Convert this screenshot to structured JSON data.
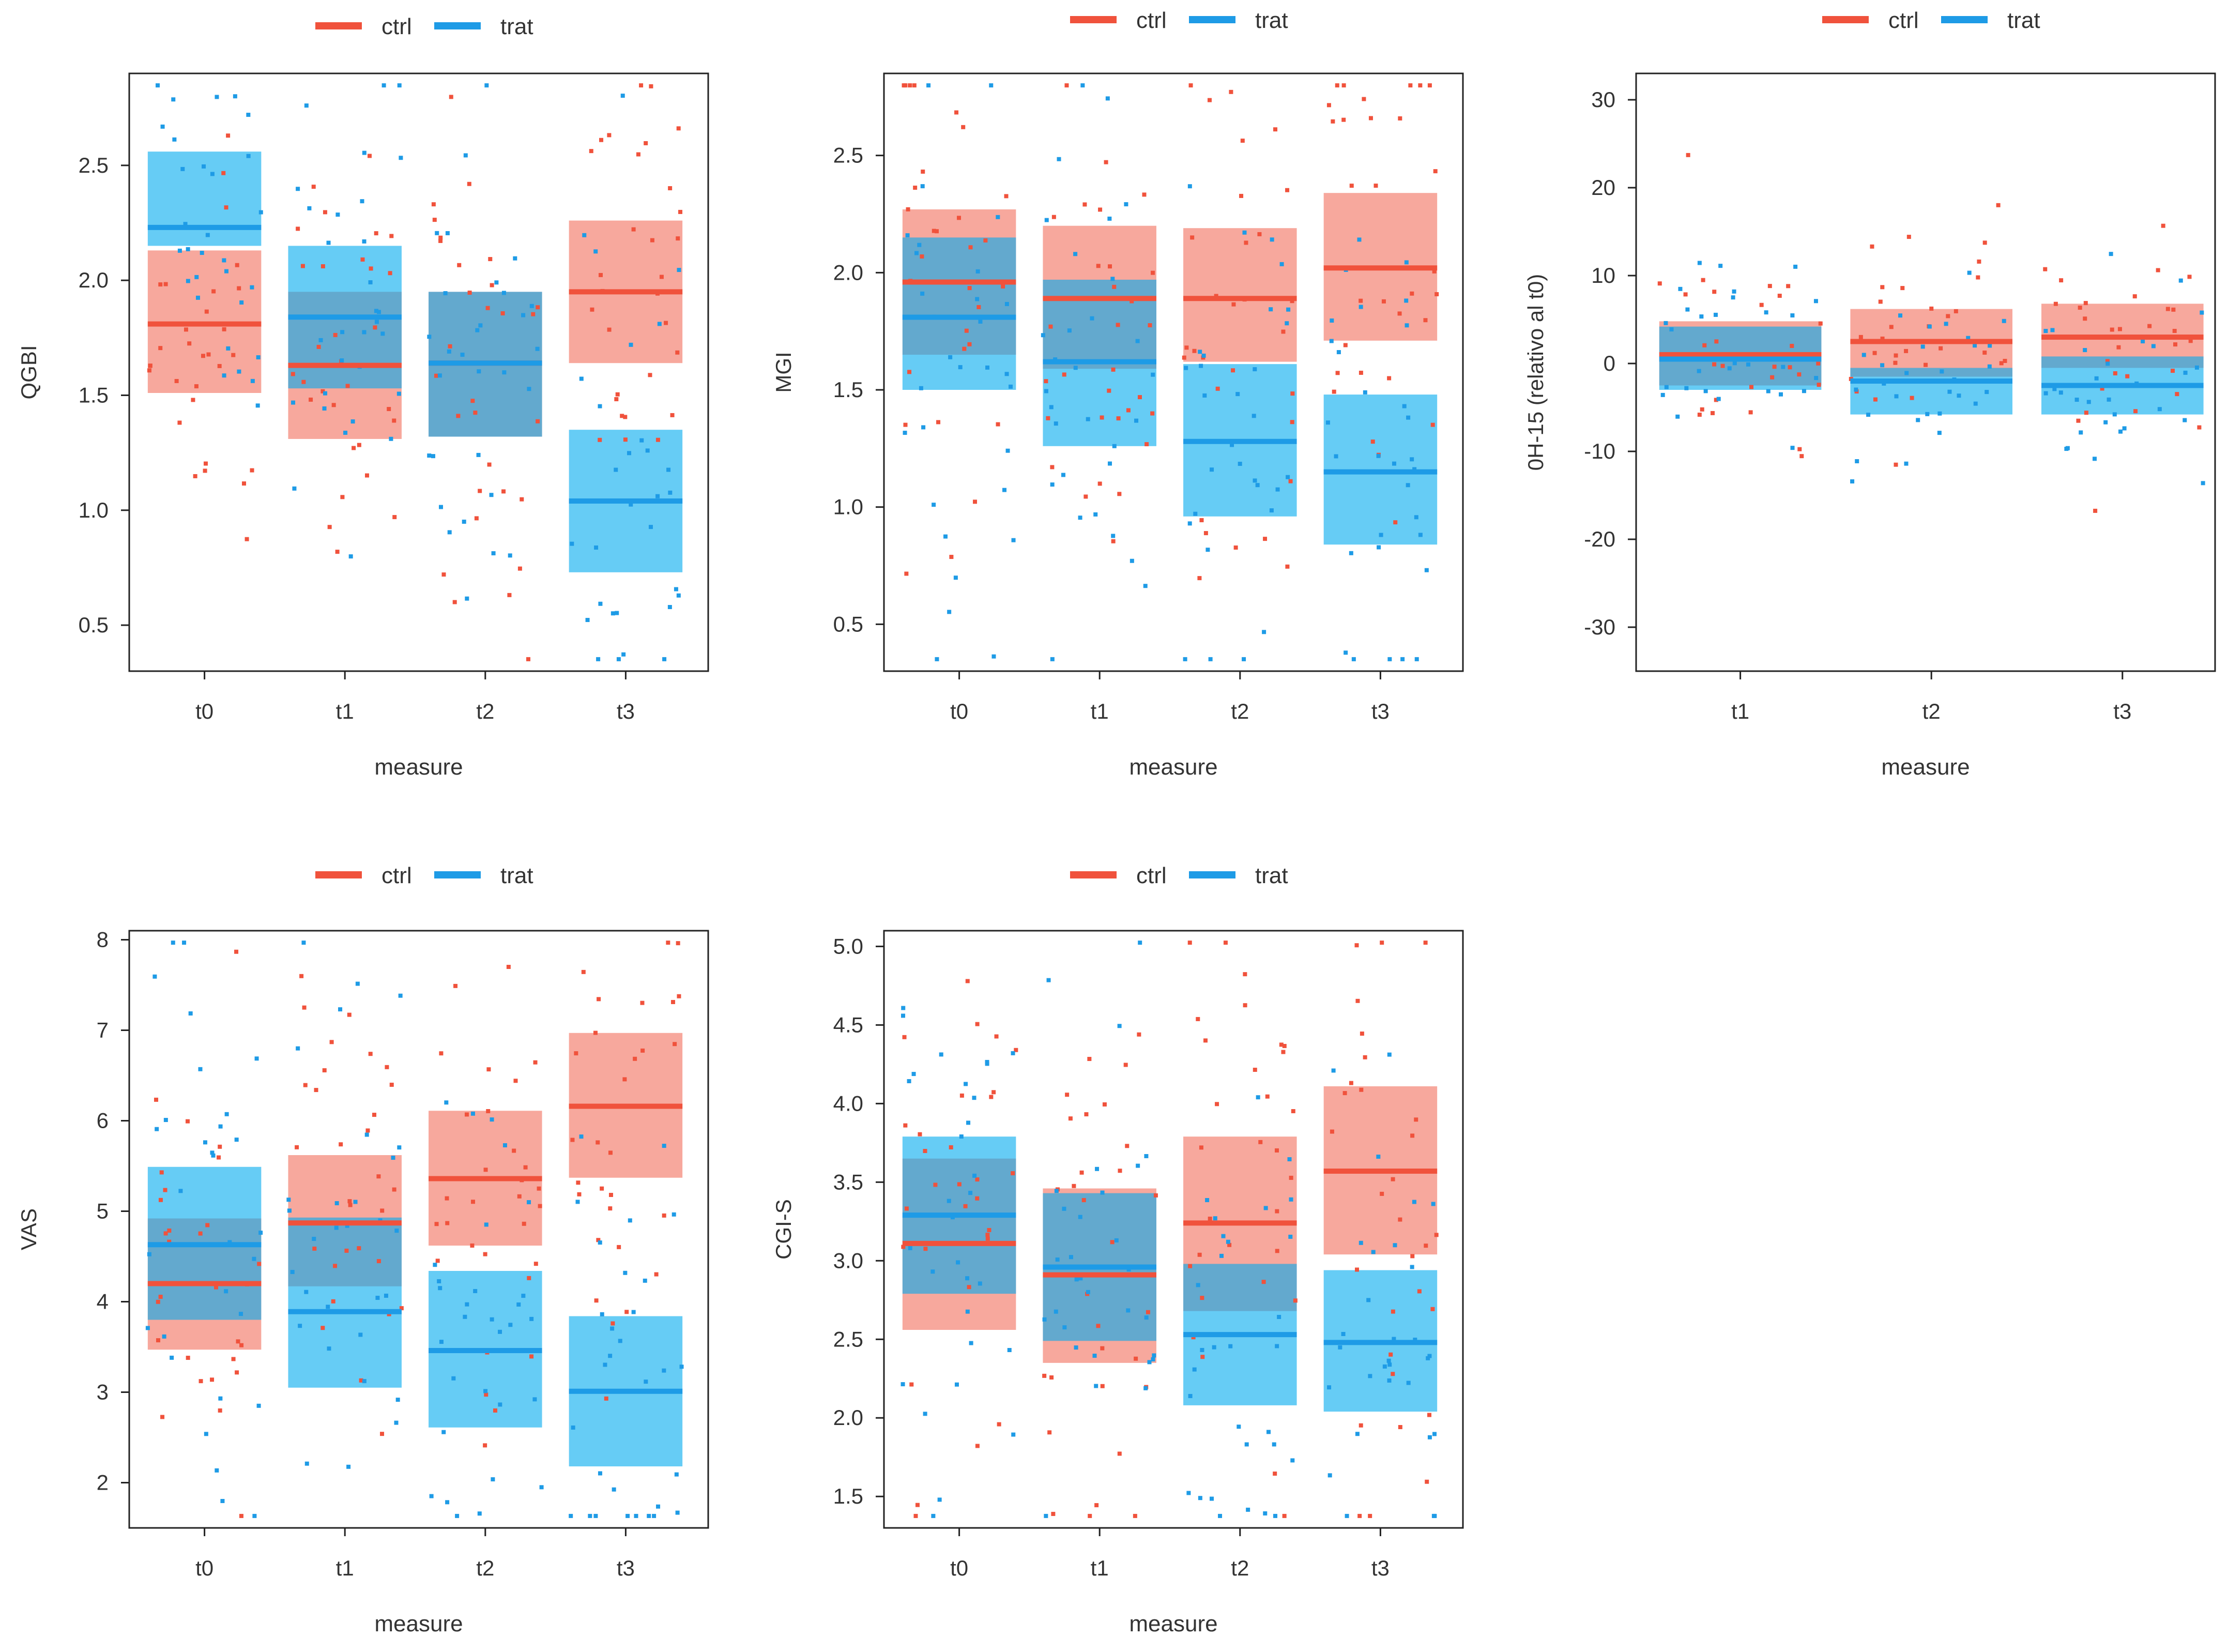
{
  "colors": {
    "ctrl": "#f0523c",
    "trat": "#1e9be6",
    "ctrl_fill": "#f0523c",
    "trat_fill": "#00aaee",
    "axis": "#222222"
  },
  "legend": {
    "ctrl": "ctrl",
    "trat": "trat"
  },
  "chart_data": [
    {
      "type": "scatter",
      "title": "",
      "xlabel": "measure",
      "ylabel": "QGBI",
      "categories": [
        "t0",
        "t1",
        "t2",
        "t3"
      ],
      "ylim": [
        0.3,
        2.9
      ],
      "yticks": [
        "0.5",
        "1.0",
        "1.5",
        "2.0",
        "2.5"
      ],
      "series": [
        {
          "name": "ctrl",
          "mean": [
            1.81,
            1.63,
            1.64,
            1.95
          ],
          "lower": [
            1.51,
            1.31,
            1.32,
            1.64
          ],
          "upper": [
            2.13,
            1.95,
            1.95,
            2.26
          ]
        },
        {
          "name": "trat",
          "mean": [
            2.23,
            1.84,
            1.64,
            1.04
          ],
          "lower": [
            2.15,
            1.53,
            1.32,
            0.73
          ],
          "upper": [
            2.56,
            2.15,
            1.95,
            1.35
          ]
        }
      ]
    },
    {
      "type": "scatter",
      "title": "",
      "xlabel": "measure",
      "ylabel": "MGI",
      "categories": [
        "t0",
        "t1",
        "t2",
        "t3"
      ],
      "ylim": [
        0.3,
        2.85
      ],
      "yticks": [
        "0.5",
        "1.0",
        "1.5",
        "2.0",
        "2.5"
      ],
      "series": [
        {
          "name": "ctrl",
          "mean": [
            1.96,
            1.89,
            1.89,
            2.02
          ],
          "lower": [
            1.65,
            1.59,
            1.62,
            1.71
          ],
          "upper": [
            2.27,
            2.2,
            2.19,
            2.34
          ]
        },
        {
          "name": "trat",
          "mean": [
            1.81,
            1.62,
            1.28,
            1.15
          ],
          "lower": [
            1.5,
            1.26,
            0.96,
            0.84
          ],
          "upper": [
            2.15,
            1.97,
            1.61,
            1.48
          ]
        }
      ]
    },
    {
      "type": "scatter",
      "title": "",
      "xlabel": "measure",
      "ylabel": "0H-15 (relativo al t0)",
      "categories": [
        "t1",
        "t2",
        "t3"
      ],
      "ylim": [
        -35,
        33
      ],
      "yticks": [
        "-30",
        "-20",
        "-10",
        "0",
        "10",
        "20",
        "30"
      ],
      "series": [
        {
          "name": "ctrl",
          "mean": [
            1.0,
            2.5,
            3.0
          ],
          "lower": [
            -2.5,
            -1.5,
            -0.5
          ],
          "upper": [
            4.8,
            6.2,
            6.8
          ]
        },
        {
          "name": "trat",
          "mean": [
            0.5,
            -2.0,
            -2.5
          ],
          "lower": [
            -3.0,
            -5.8,
            -5.8
          ],
          "upper": [
            4.2,
            -0.5,
            0.8
          ]
        }
      ]
    },
    {
      "type": "scatter",
      "title": "",
      "xlabel": "measure",
      "ylabel": "VAS",
      "categories": [
        "t0",
        "t1",
        "t2",
        "t3"
      ],
      "ylim": [
        1.5,
        8.1
      ],
      "yticks": [
        "2",
        "3",
        "4",
        "5",
        "6",
        "7",
        "8"
      ],
      "series": [
        {
          "name": "ctrl",
          "mean": [
            4.2,
            4.87,
            5.36,
            6.16
          ],
          "lower": [
            3.47,
            4.17,
            4.62,
            5.37
          ],
          "upper": [
            4.92,
            5.62,
            6.11,
            6.97
          ]
        },
        {
          "name": "trat",
          "mean": [
            4.63,
            3.89,
            3.46,
            3.01
          ],
          "lower": [
            3.8,
            3.05,
            2.61,
            2.18
          ],
          "upper": [
            5.49,
            4.93,
            4.34,
            3.84
          ]
        }
      ]
    },
    {
      "type": "scatter",
      "title": "",
      "xlabel": "measure",
      "ylabel": "CGI-S",
      "categories": [
        "t0",
        "t1",
        "t2",
        "t3"
      ],
      "ylim": [
        1.3,
        5.1
      ],
      "yticks": [
        "1.5",
        "2.0",
        "2.5",
        "3.0",
        "3.5",
        "4.0",
        "4.5",
        "5.0"
      ],
      "series": [
        {
          "name": "ctrl",
          "mean": [
            3.11,
            2.91,
            3.24,
            3.57
          ],
          "lower": [
            2.56,
            2.35,
            2.68,
            3.04
          ],
          "upper": [
            3.65,
            3.46,
            3.79,
            4.11
          ]
        },
        {
          "name": "trat",
          "mean": [
            3.29,
            2.96,
            2.53,
            2.48
          ],
          "lower": [
            2.79,
            2.49,
            2.08,
            2.04
          ],
          "upper": [
            3.79,
            3.43,
            2.98,
            2.94
          ]
        }
      ]
    }
  ]
}
